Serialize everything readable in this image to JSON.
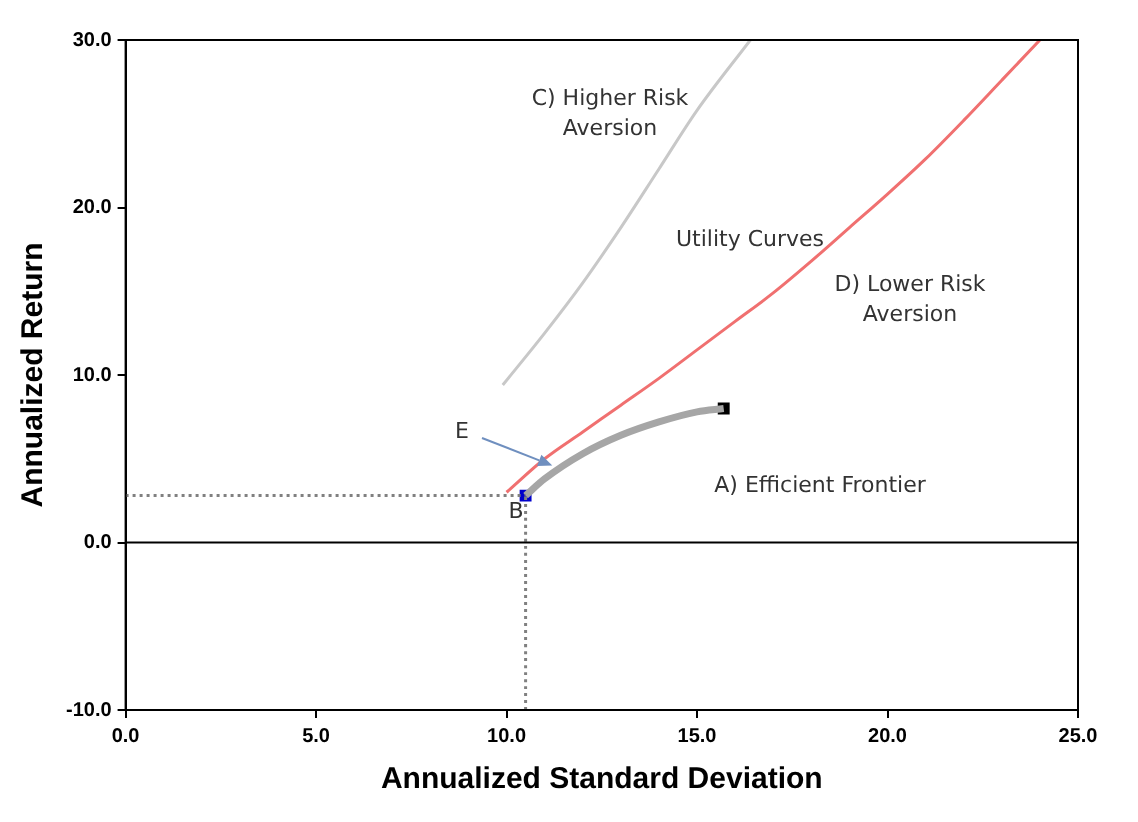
{
  "chart_data": {
    "type": "line",
    "xlabel": "Annualized Standard Deviation",
    "ylabel": "Annualized Return",
    "xlim": [
      0,
      25
    ],
    "xticks": [
      {
        "value": 0,
        "label": "0.0"
      },
      {
        "value": 5,
        "label": "5.0"
      },
      {
        "value": 10,
        "label": "10.0"
      },
      {
        "value": 15,
        "label": "15.0"
      },
      {
        "value": 20,
        "label": "20.0"
      },
      {
        "value": 25,
        "label": "25.0"
      }
    ],
    "ylim": [
      -10,
      30
    ],
    "yticks": [
      {
        "value": -10,
        "label": "-10.0"
      },
      {
        "value": 0,
        "label": "0.0"
      },
      {
        "value": 10,
        "label": "10.0"
      },
      {
        "value": 20,
        "label": "20.0"
      },
      {
        "value": 30,
        "label": "30.0"
      }
    ],
    "grid": false,
    "legend": false,
    "marker": "none",
    "series": [
      {
        "color": "#808080",
        "line_style": "dotted",
        "x": [
          0,
          10.5
        ],
        "values": [
          2.8,
          2.8
        ]
      },
      {
        "color": "#808080",
        "line_style": "dotted",
        "x": [
          10.5,
          10.5
        ],
        "values": [
          -10,
          2.8
        ]
      },
      {
        "color": "#a6a6a6",
        "line_style": "solid",
        "x": [
          10.5,
          11,
          12,
          13,
          14,
          15,
          15.7
        ],
        "values": [
          2.8,
          3.8,
          5.3,
          6.4,
          7.2,
          7.8,
          8.0
        ]
      },
      {
        "color": "#c8c8c8",
        "line_style": "solid",
        "x": [
          9.9,
          11,
          12,
          13,
          14,
          15,
          16.4
        ],
        "values": [
          9.4,
          12.5,
          15.5,
          18.8,
          22.3,
          25.8,
          30
        ]
      },
      {
        "color": "#f07070",
        "line_style": "solid",
        "x": [
          10,
          11,
          12,
          13,
          14,
          15,
          16,
          17,
          18,
          19,
          20,
          21,
          22,
          23,
          24
        ],
        "values": [
          3,
          5,
          6.6,
          8.2,
          9.8,
          11.5,
          13.2,
          14.9,
          16.8,
          18.8,
          20.8,
          22.9,
          25.2,
          27.6,
          30
        ]
      },
      {
        "type": "scatter",
        "color": "#0000cc",
        "marker": "square",
        "x": [
          10.5
        ],
        "values": [
          2.8
        ]
      },
      {
        "type": "scatter",
        "color": "#000000",
        "marker": "square",
        "x": [
          15.7
        ],
        "values": [
          8.0
        ]
      }
    ],
    "ref_lines": [
      {
        "axis": "y",
        "value": 0,
        "color": "#000000",
        "line_style": "solid"
      }
    ],
    "annotations": [
      "C) Higher Risk\nAversion",
      "Utility Curves",
      "D) Lower Risk\nAversion",
      "A) Efficient Frontier",
      {
        "text": "E",
        "x": 11.2,
        "y": 4.6
      },
      "B"
    ]
  }
}
